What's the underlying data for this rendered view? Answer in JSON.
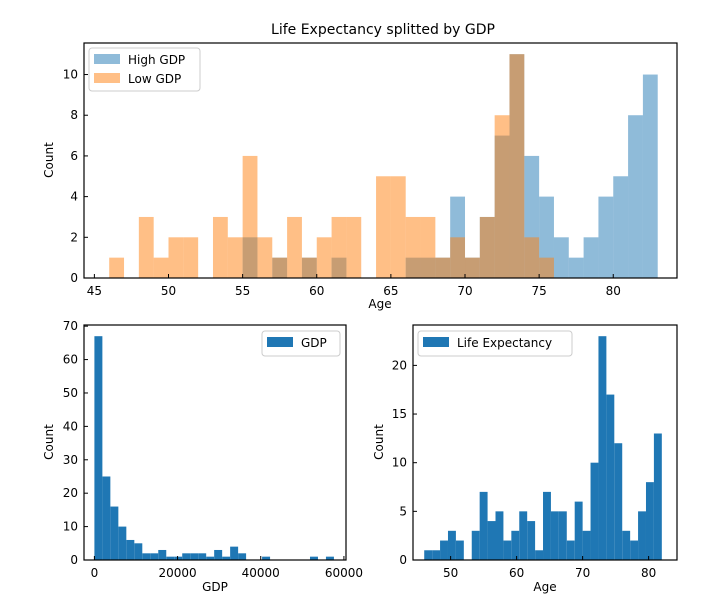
{
  "chart_data": [
    {
      "type": "bar",
      "id": "top",
      "title": "Life Expectancy splitted by GDP",
      "xlabel": "Age",
      "ylabel": "Count",
      "xlim": [
        44.3,
        84.3
      ],
      "ylim": [
        0,
        11.55
      ],
      "xticks": [
        45,
        50,
        55,
        60,
        65,
        70,
        75,
        80
      ],
      "yticks": [
        0,
        2,
        4,
        6,
        8,
        10
      ],
      "legend": "top-left",
      "colors": {
        "High GDP": "#1f77b4",
        "Low GDP": "#ff7f0e"
      },
      "series": [
        {
          "name": "High GDP",
          "bin_width": 1.0,
          "bins": [
            [
              55.5,
              2
            ],
            [
              57.5,
              1
            ],
            [
              59.5,
              1
            ],
            [
              61.5,
              1
            ],
            [
              66.5,
              1
            ],
            [
              67.5,
              1
            ],
            [
              68.5,
              1
            ],
            [
              69.5,
              4
            ],
            [
              70.5,
              1
            ],
            [
              71.5,
              3
            ],
            [
              72.5,
              7
            ],
            [
              73.5,
              11
            ],
            [
              74.5,
              6
            ],
            [
              75.5,
              4
            ],
            [
              76.5,
              2
            ],
            [
              77.5,
              1
            ],
            [
              78.5,
              2
            ],
            [
              79.5,
              4
            ],
            [
              80.5,
              5
            ],
            [
              81.5,
              8
            ],
            [
              82.5,
              10
            ]
          ]
        },
        {
          "name": "Low GDP",
          "bin_width": 1.0,
          "bins": [
            [
              46.5,
              1
            ],
            [
              48.5,
              3
            ],
            [
              49.5,
              1
            ],
            [
              50.5,
              2
            ],
            [
              51.5,
              2
            ],
            [
              53.5,
              3
            ],
            [
              54.5,
              2
            ],
            [
              55.5,
              6
            ],
            [
              56.5,
              2
            ],
            [
              57.5,
              1
            ],
            [
              58.5,
              3
            ],
            [
              59.5,
              1
            ],
            [
              60.5,
              2
            ],
            [
              61.5,
              3
            ],
            [
              62.5,
              3
            ],
            [
              64.5,
              5
            ],
            [
              65.5,
              5
            ],
            [
              66.5,
              3
            ],
            [
              67.5,
              3
            ],
            [
              68.5,
              1
            ],
            [
              69.5,
              2
            ],
            [
              70.5,
              1
            ],
            [
              71.5,
              3
            ],
            [
              72.5,
              8
            ],
            [
              73.5,
              11
            ],
            [
              74.5,
              2
            ],
            [
              75.5,
              1
            ]
          ]
        }
      ]
    },
    {
      "type": "bar",
      "id": "bottom-left",
      "xlabel": "GDP",
      "ylabel": "Count",
      "xlim": [
        -2500,
        60500
      ],
      "ylim": [
        0,
        70.35
      ],
      "xticks": [
        0,
        20000,
        40000,
        60000
      ],
      "yticks": [
        0,
        10,
        20,
        30,
        40,
        50,
        60,
        70
      ],
      "legend": "top-right",
      "colors": {
        "GDP": "#1f77b4"
      },
      "series": [
        {
          "name": "GDP",
          "bin_width": 1920,
          "bins": [
            [
              960,
              67
            ],
            [
              2880,
              25
            ],
            [
              4800,
              16
            ],
            [
              6720,
              10
            ],
            [
              8640,
              6
            ],
            [
              10560,
              5
            ],
            [
              12480,
              2
            ],
            [
              14400,
              2
            ],
            [
              16320,
              3
            ],
            [
              18240,
              1
            ],
            [
              20160,
              1
            ],
            [
              22080,
              2
            ],
            [
              24000,
              2
            ],
            [
              25920,
              2
            ],
            [
              27840,
              1
            ],
            [
              29760,
              3
            ],
            [
              31680,
              1
            ],
            [
              33600,
              4
            ],
            [
              35520,
              2
            ],
            [
              37440,
              0
            ],
            [
              39360,
              0
            ],
            [
              41280,
              1
            ],
            [
              43200,
              0
            ],
            [
              45120,
              0
            ],
            [
              47040,
              0
            ],
            [
              48960,
              0
            ],
            [
              50880,
              0
            ],
            [
              52800,
              1
            ],
            [
              54720,
              0
            ],
            [
              56640,
              1
            ]
          ]
        }
      ]
    },
    {
      "type": "bar",
      "id": "bottom-right",
      "xlabel": "Age",
      "ylabel": "Count",
      "xlim": [
        44.3,
        84.3
      ],
      "ylim": [
        0,
        24.15
      ],
      "xticks": [
        50,
        60,
        70,
        80
      ],
      "yticks": [
        0,
        5,
        10,
        15,
        20
      ],
      "legend": "top-left",
      "colors": {
        "Life Expectancy": "#1f77b4"
      },
      "series": [
        {
          "name": "Life Expectancy",
          "bin_width": 1.2,
          "bins": [
            [
              46.6,
              1
            ],
            [
              47.8,
              1
            ],
            [
              49.0,
              2
            ],
            [
              50.2,
              3
            ],
            [
              51.4,
              2
            ],
            [
              52.6,
              0
            ],
            [
              53.8,
              3
            ],
            [
              55.0,
              7
            ],
            [
              56.2,
              4
            ],
            [
              57.4,
              5
            ],
            [
              58.6,
              2
            ],
            [
              59.8,
              3
            ],
            [
              61.0,
              5
            ],
            [
              62.2,
              4
            ],
            [
              63.4,
              1
            ],
            [
              64.6,
              7
            ],
            [
              65.8,
              5
            ],
            [
              67.0,
              5
            ],
            [
              68.2,
              2
            ],
            [
              69.4,
              6
            ],
            [
              70.6,
              3
            ],
            [
              71.8,
              10
            ],
            [
              73.0,
              23
            ],
            [
              74.2,
              17
            ],
            [
              75.4,
              12
            ],
            [
              76.6,
              3
            ],
            [
              77.8,
              2
            ],
            [
              79.0,
              5
            ],
            [
              80.2,
              8
            ],
            [
              81.4,
              13
            ]
          ]
        }
      ]
    }
  ]
}
